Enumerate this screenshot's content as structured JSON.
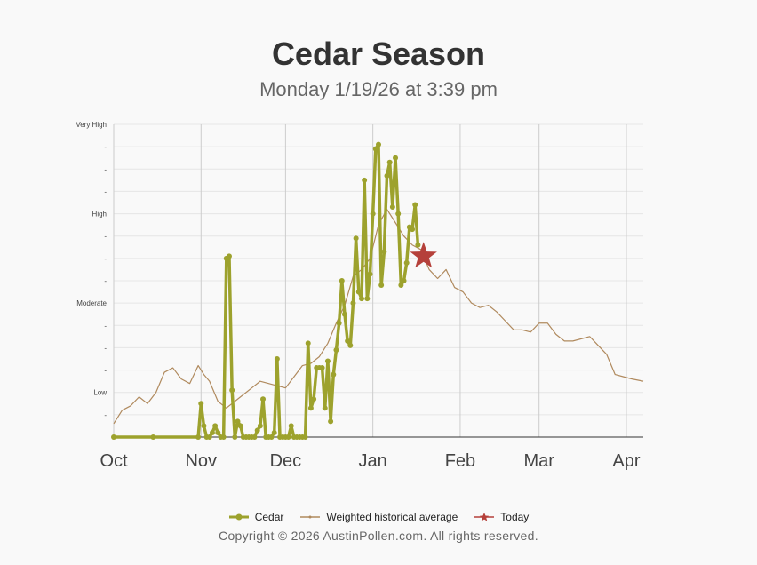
{
  "header": {
    "title": "Cedar Season",
    "subtitle": "Monday 1/19/26 at 3:39 pm"
  },
  "footer": {
    "copyright": "Copyright © 2026 AustinPollen.com.  All rights reserved."
  },
  "colors": {
    "cedar": "#9da22d",
    "historical": "#b08a5e",
    "today": "#b5403a",
    "grid": "#e6e6e6",
    "month_grid": "#cccccc"
  },
  "chart_data": {
    "type": "line",
    "x_axis": {
      "start": "2025-10-01",
      "end": "2026-04-07",
      "tick_labels": [
        "Oct",
        "Nov",
        "Dec",
        "Jan",
        "Feb",
        "Mar",
        "Apr"
      ],
      "tick_dates": [
        "2025-10-01",
        "2025-11-01",
        "2025-12-01",
        "2026-01-01",
        "2026-02-01",
        "2026-03-01",
        "2026-04-01"
      ]
    },
    "y_axis": {
      "range": [
        0,
        14
      ],
      "tick_values": [
        2,
        6,
        10,
        14
      ],
      "tick_labels": [
        "Low",
        "Moderate",
        "High",
        "Very High"
      ],
      "minor_ticks": [
        1,
        3,
        4,
        5,
        7,
        8,
        9,
        11,
        12,
        13
      ],
      "minor_label": "-"
    },
    "grid": true,
    "legend_position": "bottom",
    "series": [
      {
        "name": "Cedar",
        "color": "#9da22d",
        "points": [
          [
            "2025-10-01",
            0.0
          ],
          [
            "2025-10-15",
            0.0
          ],
          [
            "2025-10-31",
            0.0
          ],
          [
            "2025-11-01",
            1.5
          ],
          [
            "2025-11-02",
            0.5
          ],
          [
            "2025-11-03",
            0.0
          ],
          [
            "2025-11-04",
            0.0
          ],
          [
            "2025-11-05",
            0.2
          ],
          [
            "2025-11-06",
            0.5
          ],
          [
            "2025-11-07",
            0.2
          ],
          [
            "2025-11-08",
            0.0
          ],
          [
            "2025-11-09",
            0.0
          ],
          [
            "2025-11-10",
            8.0
          ],
          [
            "2025-11-11",
            8.1
          ],
          [
            "2025-11-12",
            2.1
          ],
          [
            "2025-11-13",
            0.0
          ],
          [
            "2025-11-14",
            0.7
          ],
          [
            "2025-11-15",
            0.5
          ],
          [
            "2025-11-16",
            0.0
          ],
          [
            "2025-11-17",
            0.0
          ],
          [
            "2025-11-18",
            0.0
          ],
          [
            "2025-11-19",
            0.0
          ],
          [
            "2025-11-20",
            0.0
          ],
          [
            "2025-11-21",
            0.3
          ],
          [
            "2025-11-22",
            0.5
          ],
          [
            "2025-11-23",
            1.7
          ],
          [
            "2025-11-24",
            0.0
          ],
          [
            "2025-11-25",
            0.0
          ],
          [
            "2025-11-26",
            0.0
          ],
          [
            "2025-11-27",
            0.2
          ],
          [
            "2025-11-28",
            3.5
          ],
          [
            "2025-11-29",
            0.0
          ],
          [
            "2025-11-30",
            0.0
          ],
          [
            "2025-12-01",
            0.0
          ],
          [
            "2025-12-02",
            0.0
          ],
          [
            "2025-12-03",
            0.5
          ],
          [
            "2025-12-04",
            0.0
          ],
          [
            "2025-12-05",
            0.0
          ],
          [
            "2025-12-06",
            0.0
          ],
          [
            "2025-12-07",
            0.0
          ],
          [
            "2025-12-08",
            0.0
          ],
          [
            "2025-12-09",
            4.2
          ],
          [
            "2025-12-10",
            1.3
          ],
          [
            "2025-12-11",
            1.7
          ],
          [
            "2025-12-12",
            3.1
          ],
          [
            "2025-12-13",
            3.1
          ],
          [
            "2025-12-14",
            3.1
          ],
          [
            "2025-12-15",
            1.3
          ],
          [
            "2025-12-16",
            3.4
          ],
          [
            "2025-12-17",
            0.7
          ],
          [
            "2025-12-18",
            2.8
          ],
          [
            "2025-12-19",
            3.9
          ],
          [
            "2025-12-20",
            5.1
          ],
          [
            "2025-12-21",
            7.0
          ],
          [
            "2025-12-22",
            5.5
          ],
          [
            "2025-12-23",
            4.3
          ],
          [
            "2025-12-24",
            4.1
          ],
          [
            "2025-12-25",
            6.0
          ],
          [
            "2025-12-26",
            8.9
          ],
          [
            "2025-12-27",
            6.5
          ],
          [
            "2025-12-28",
            6.2
          ],
          [
            "2025-12-29",
            11.5
          ],
          [
            "2025-12-30",
            6.2
          ],
          [
            "2025-12-31",
            7.3
          ],
          [
            "2026-01-01",
            10.0
          ],
          [
            "2026-01-02",
            12.9
          ],
          [
            "2026-01-03",
            13.1
          ],
          [
            "2026-01-04",
            6.8
          ],
          [
            "2026-01-05",
            8.3
          ],
          [
            "2026-01-06",
            11.7
          ],
          [
            "2026-01-07",
            12.3
          ],
          [
            "2026-01-08",
            10.3
          ],
          [
            "2026-01-09",
            12.5
          ],
          [
            "2026-01-10",
            10.0
          ],
          [
            "2026-01-11",
            6.8
          ],
          [
            "2026-01-12",
            7.0
          ],
          [
            "2026-01-13",
            7.8
          ],
          [
            "2026-01-14",
            9.4
          ],
          [
            "2026-01-15",
            9.3
          ],
          [
            "2026-01-16",
            10.4
          ],
          [
            "2026-01-17",
            8.6
          ]
        ]
      },
      {
        "name": "Weighted historical average",
        "color": "#b08a5e",
        "points": [
          [
            "2025-10-01",
            0.6
          ],
          [
            "2025-10-04",
            1.2
          ],
          [
            "2025-10-07",
            1.4
          ],
          [
            "2025-10-10",
            1.8
          ],
          [
            "2025-10-13",
            1.5
          ],
          [
            "2025-10-16",
            2.0
          ],
          [
            "2025-10-19",
            2.9
          ],
          [
            "2025-10-22",
            3.1
          ],
          [
            "2025-10-25",
            2.6
          ],
          [
            "2025-10-28",
            2.4
          ],
          [
            "2025-10-31",
            3.2
          ],
          [
            "2025-11-02",
            2.8
          ],
          [
            "2025-11-04",
            2.5
          ],
          [
            "2025-11-07",
            1.6
          ],
          [
            "2025-11-10",
            1.3
          ],
          [
            "2025-11-13",
            1.6
          ],
          [
            "2025-11-16",
            1.9
          ],
          [
            "2025-11-19",
            2.2
          ],
          [
            "2025-11-22",
            2.5
          ],
          [
            "2025-11-25",
            2.4
          ],
          [
            "2025-11-28",
            2.3
          ],
          [
            "2025-12-01",
            2.2
          ],
          [
            "2025-12-04",
            2.7
          ],
          [
            "2025-12-07",
            3.2
          ],
          [
            "2025-12-10",
            3.3
          ],
          [
            "2025-12-13",
            3.6
          ],
          [
            "2025-12-16",
            4.2
          ],
          [
            "2025-12-19",
            5.1
          ],
          [
            "2025-12-22",
            5.9
          ],
          [
            "2025-12-25",
            7.2
          ],
          [
            "2025-12-28",
            7.5
          ],
          [
            "2025-12-31",
            8.0
          ],
          [
            "2026-01-03",
            9.5
          ],
          [
            "2026-01-06",
            10.2
          ],
          [
            "2026-01-09",
            9.6
          ],
          [
            "2026-01-12",
            9.0
          ],
          [
            "2026-01-15",
            8.6
          ],
          [
            "2026-01-18",
            8.4
          ],
          [
            "2026-01-21",
            7.5
          ],
          [
            "2026-01-24",
            7.1
          ],
          [
            "2026-01-27",
            7.5
          ],
          [
            "2026-01-30",
            6.7
          ],
          [
            "2026-02-02",
            6.5
          ],
          [
            "2026-02-05",
            6.0
          ],
          [
            "2026-02-08",
            5.8
          ],
          [
            "2026-02-11",
            5.9
          ],
          [
            "2026-02-14",
            5.6
          ],
          [
            "2026-02-17",
            5.2
          ],
          [
            "2026-02-20",
            4.8
          ],
          [
            "2026-02-23",
            4.8
          ],
          [
            "2026-02-26",
            4.7
          ],
          [
            "2026-03-01",
            5.1
          ],
          [
            "2026-03-04",
            5.1
          ],
          [
            "2026-03-07",
            4.6
          ],
          [
            "2026-03-10",
            4.3
          ],
          [
            "2026-03-13",
            4.3
          ],
          [
            "2026-03-16",
            4.4
          ],
          [
            "2026-03-19",
            4.5
          ],
          [
            "2026-03-22",
            4.1
          ],
          [
            "2026-03-25",
            3.7
          ],
          [
            "2026-03-28",
            2.8
          ],
          [
            "2026-03-31",
            2.7
          ],
          [
            "2026-04-03",
            2.6
          ],
          [
            "2026-04-07",
            2.5
          ]
        ]
      },
      {
        "name": "Today",
        "color": "#b5403a",
        "marker": "star",
        "points": [
          [
            "2026-01-19",
            8.1
          ]
        ]
      }
    ]
  }
}
